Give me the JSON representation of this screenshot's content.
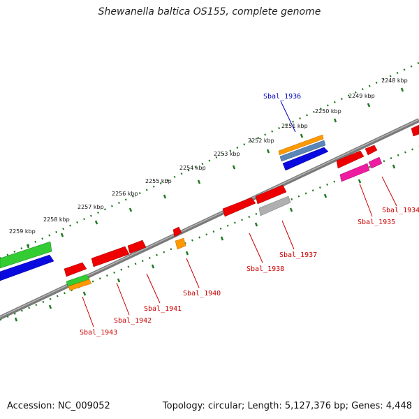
{
  "title": "Shewanella baltica OS155, complete genome",
  "footer": {
    "accession": "Accession: NC_009052",
    "stats": "Topology: circular; Length: 5,127,376 bp; Genes: 4,448"
  },
  "scale_labels": [
    "2248 kbp",
    "2249 kbp",
    "2250 kbp",
    "2251 kbp",
    "2252 kbp",
    "2253 kbp",
    "2254 kbp",
    "2255 kbp",
    "2256 kbp",
    "2257 kbp",
    "2258 kbp",
    "2259 kbp"
  ],
  "gene_labels": {
    "g1936": "Sbal_1936",
    "g1934": "Sbal_1934",
    "g1935": "Sbal_1935",
    "g1937": "Sbal_1937",
    "g1938": "Sbal_1938",
    "g1940": "Sbal_1940",
    "g1941": "Sbal_1941",
    "g1942": "Sbal_1942",
    "g1943": "Sbal_1943"
  },
  "colors": {
    "backbone": "#7a7a7a",
    "label_red": "#cc0000",
    "label_blue": "#0000bb",
    "tick_green": "#1f7a1f",
    "gene_red": "#ee0000",
    "gene_blue": "#0a0ae0",
    "gene_green": "#33cc33",
    "gene_orange": "#ff9900",
    "gene_pink": "#ee1ca0",
    "gene_gray": "#b0b0b0",
    "gene_steel": "#5a86b8"
  }
}
